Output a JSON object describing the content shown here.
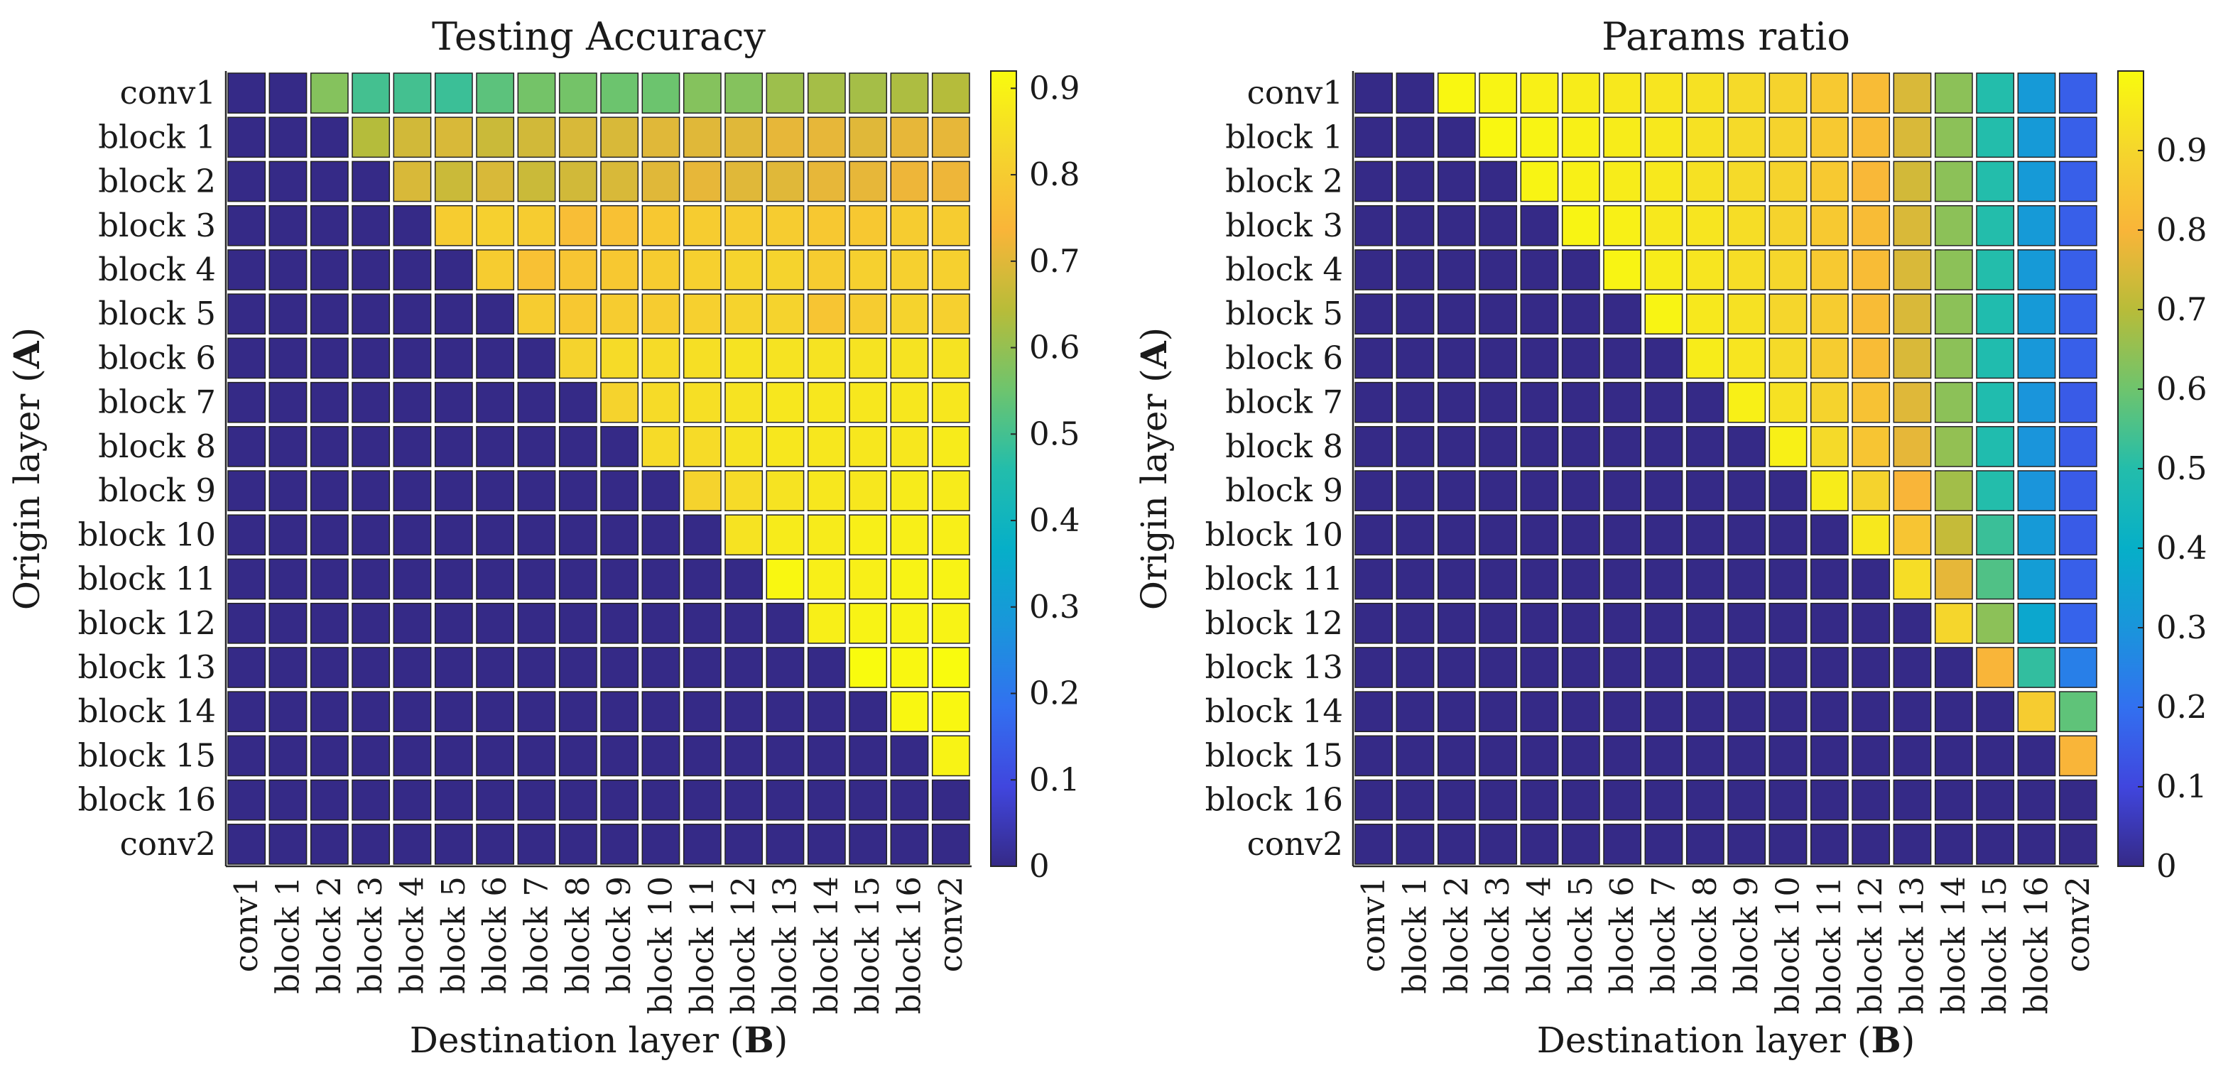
{
  "chart_data": [
    {
      "type": "heatmap",
      "title": "Testing Accuracy",
      "xlabel": "Destination layer (B)",
      "ylabel": "Origin layer (A)",
      "xlabel_parts": [
        "Destination layer (",
        "B",
        ")"
      ],
      "ylabel_parts": [
        "Origin layer (",
        "A",
        ")"
      ],
      "rows": [
        "conv1",
        "block  1",
        "block  2",
        "block  3",
        "block  4",
        "block  5",
        "block  6",
        "block  7",
        "block  8",
        "block  9",
        "block 10",
        "block 11",
        "block 12",
        "block 13",
        "block 14",
        "block 15",
        "block 16",
        "conv2"
      ],
      "columns": [
        "conv1",
        "block  1",
        "block  2",
        "block  3",
        "block  4",
        "block  5",
        "block  6",
        "block  7",
        "block  8",
        "block  9",
        "block 10",
        "block 11",
        "block 12",
        "block 13",
        "block 14",
        "block 15",
        "block 16",
        "conv2"
      ],
      "colorbar": {
        "range": [
          0,
          0.92
        ],
        "ticks": [
          0,
          0.1,
          0.2,
          0.3,
          0.4,
          0.5,
          0.6,
          0.7,
          0.8,
          0.9
        ],
        "tick_labels": [
          "0",
          "0.1",
          "0.2",
          "0.3",
          "0.4",
          "0.5",
          "0.6",
          "0.7",
          "0.8",
          "0.9"
        ]
      },
      "values": [
        [
          0,
          0,
          0.58,
          0.5,
          0.5,
          0.49,
          0.53,
          0.56,
          0.56,
          0.55,
          0.55,
          0.58,
          0.58,
          0.61,
          0.62,
          0.62,
          0.63,
          0.64
        ],
        [
          0,
          0,
          0,
          0.64,
          0.68,
          0.69,
          0.67,
          0.68,
          0.69,
          0.69,
          0.7,
          0.7,
          0.7,
          0.71,
          0.71,
          0.7,
          0.71,
          0.71
        ],
        [
          0,
          0,
          0,
          0,
          0.69,
          0.67,
          0.69,
          0.67,
          0.68,
          0.69,
          0.7,
          0.71,
          0.7,
          0.7,
          0.71,
          0.71,
          0.72,
          0.72
        ],
        [
          0,
          0,
          0,
          0,
          0,
          0.8,
          0.81,
          0.8,
          0.76,
          0.77,
          0.79,
          0.8,
          0.8,
          0.8,
          0.79,
          0.79,
          0.8,
          0.8
        ],
        [
          0,
          0,
          0,
          0,
          0,
          0,
          0.8,
          0.77,
          0.78,
          0.79,
          0.8,
          0.81,
          0.82,
          0.82,
          0.8,
          0.81,
          0.81,
          0.81
        ],
        [
          0,
          0,
          0,
          0,
          0,
          0,
          0,
          0.8,
          0.79,
          0.8,
          0.8,
          0.81,
          0.82,
          0.82,
          0.78,
          0.8,
          0.82,
          0.81
        ],
        [
          0,
          0,
          0,
          0,
          0,
          0,
          0,
          0,
          0.82,
          0.84,
          0.84,
          0.85,
          0.86,
          0.86,
          0.86,
          0.86,
          0.86,
          0.86
        ],
        [
          0,
          0,
          0,
          0,
          0,
          0,
          0,
          0,
          0,
          0.82,
          0.84,
          0.85,
          0.86,
          0.87,
          0.87,
          0.87,
          0.87,
          0.87
        ],
        [
          0,
          0,
          0,
          0,
          0,
          0,
          0,
          0,
          0,
          0,
          0.84,
          0.84,
          0.86,
          0.87,
          0.87,
          0.87,
          0.87,
          0.88
        ],
        [
          0,
          0,
          0,
          0,
          0,
          0,
          0,
          0,
          0,
          0,
          0,
          0.82,
          0.84,
          0.86,
          0.87,
          0.87,
          0.88,
          0.88
        ],
        [
          0,
          0,
          0,
          0,
          0,
          0,
          0,
          0,
          0,
          0,
          0,
          0,
          0.86,
          0.88,
          0.88,
          0.89,
          0.89,
          0.89
        ],
        [
          0,
          0,
          0,
          0,
          0,
          0,
          0,
          0,
          0,
          0,
          0,
          0,
          0,
          0.91,
          0.89,
          0.89,
          0.9,
          0.9
        ],
        [
          0,
          0,
          0,
          0,
          0,
          0,
          0,
          0,
          0,
          0,
          0,
          0,
          0,
          0,
          0.89,
          0.9,
          0.9,
          0.9
        ],
        [
          0,
          0,
          0,
          0,
          0,
          0,
          0,
          0,
          0,
          0,
          0,
          0,
          0,
          0,
          0,
          0.92,
          0.91,
          0.92
        ],
        [
          0,
          0,
          0,
          0,
          0,
          0,
          0,
          0,
          0,
          0,
          0,
          0,
          0,
          0,
          0,
          0,
          0.91,
          0.91
        ],
        [
          0,
          0,
          0,
          0,
          0,
          0,
          0,
          0,
          0,
          0,
          0,
          0,
          0,
          0,
          0,
          0,
          0,
          0.9
        ],
        [
          0,
          0,
          0,
          0,
          0,
          0,
          0,
          0,
          0,
          0,
          0,
          0,
          0,
          0,
          0,
          0,
          0,
          0
        ],
        [
          0,
          0,
          0,
          0,
          0,
          0,
          0,
          0,
          0,
          0,
          0,
          0,
          0,
          0,
          0,
          0,
          0,
          0
        ]
      ]
    },
    {
      "type": "heatmap",
      "title": "Params ratio",
      "xlabel": "Destination layer (B)",
      "ylabel": "Origin layer (A)",
      "xlabel_parts": [
        "Destination layer (",
        "B",
        ")"
      ],
      "ylabel_parts": [
        "Origin layer (",
        "A",
        ")"
      ],
      "rows": [
        "conv1",
        "block  1",
        "block  2",
        "block  3",
        "block  4",
        "block  5",
        "block  6",
        "block  7",
        "block  8",
        "block  9",
        "block 10",
        "block 11",
        "block 12",
        "block 13",
        "block 14",
        "block 15",
        "block 16",
        "conv2"
      ],
      "columns": [
        "conv1",
        "block  1",
        "block  2",
        "block  3",
        "block  4",
        "block  5",
        "block  6",
        "block  7",
        "block  8",
        "block  9",
        "block 10",
        "block 11",
        "block 12",
        "block 13",
        "block 14",
        "block 15",
        "block 16",
        "conv2"
      ],
      "colorbar": {
        "range": [
          0,
          1
        ],
        "ticks": [
          0,
          0.1,
          0.2,
          0.3,
          0.4,
          0.5,
          0.6,
          0.7,
          0.8,
          0.9
        ],
        "tick_labels": [
          "0",
          "0.1",
          "0.2",
          "0.3",
          "0.4",
          "0.5",
          "0.6",
          "0.7",
          "0.8",
          "0.9"
        ]
      },
      "values": [
        [
          0,
          0,
          0.99,
          0.98,
          0.97,
          0.96,
          0.95,
          0.94,
          0.93,
          0.91,
          0.89,
          0.86,
          0.82,
          0.75,
          0.64,
          0.5,
          0.32,
          0.16
        ],
        [
          0,
          0,
          0,
          0.99,
          0.98,
          0.97,
          0.96,
          0.95,
          0.93,
          0.91,
          0.89,
          0.86,
          0.82,
          0.75,
          0.64,
          0.5,
          0.32,
          0.16
        ],
        [
          0,
          0,
          0,
          0,
          0.98,
          0.97,
          0.96,
          0.95,
          0.93,
          0.91,
          0.89,
          0.86,
          0.81,
          0.74,
          0.64,
          0.5,
          0.32,
          0.16
        ],
        [
          0,
          0,
          0,
          0,
          0,
          0.98,
          0.97,
          0.95,
          0.94,
          0.92,
          0.89,
          0.86,
          0.82,
          0.75,
          0.64,
          0.5,
          0.32,
          0.16
        ],
        [
          0,
          0,
          0,
          0,
          0,
          0,
          0.98,
          0.96,
          0.94,
          0.92,
          0.9,
          0.86,
          0.82,
          0.75,
          0.64,
          0.5,
          0.32,
          0.16
        ],
        [
          0,
          0,
          0,
          0,
          0,
          0,
          0,
          0.98,
          0.95,
          0.93,
          0.9,
          0.87,
          0.82,
          0.75,
          0.64,
          0.49,
          0.32,
          0.16
        ],
        [
          0,
          0,
          0,
          0,
          0,
          0,
          0,
          0,
          0.96,
          0.94,
          0.91,
          0.87,
          0.82,
          0.75,
          0.64,
          0.49,
          0.31,
          0.16
        ],
        [
          0,
          0,
          0,
          0,
          0,
          0,
          0,
          0,
          0,
          0.97,
          0.93,
          0.89,
          0.84,
          0.76,
          0.64,
          0.49,
          0.3,
          0.15
        ],
        [
          0,
          0,
          0,
          0,
          0,
          0,
          0,
          0,
          0,
          0,
          0.97,
          0.91,
          0.85,
          0.77,
          0.65,
          0.49,
          0.3,
          0.15
        ],
        [
          0,
          0,
          0,
          0,
          0,
          0,
          0,
          0,
          0,
          0,
          0,
          0.96,
          0.89,
          0.8,
          0.67,
          0.5,
          0.3,
          0.15
        ],
        [
          0,
          0,
          0,
          0,
          0,
          0,
          0,
          0,
          0,
          0,
          0,
          0,
          0.95,
          0.85,
          0.72,
          0.53,
          0.32,
          0.15
        ],
        [
          0,
          0,
          0,
          0,
          0,
          0,
          0,
          0,
          0,
          0,
          0,
          0,
          0,
          0.92,
          0.77,
          0.56,
          0.33,
          0.16
        ],
        [
          0,
          0,
          0,
          0,
          0,
          0,
          0,
          0,
          0,
          0,
          0,
          0,
          0,
          0,
          0.9,
          0.64,
          0.37,
          0.17
        ],
        [
          0,
          0,
          0,
          0,
          0,
          0,
          0,
          0,
          0,
          0,
          0,
          0,
          0,
          0,
          0,
          0.8,
          0.52,
          0.24
        ],
        [
          0,
          0,
          0,
          0,
          0,
          0,
          0,
          0,
          0,
          0,
          0,
          0,
          0,
          0,
          0,
          0,
          0.87,
          0.58
        ],
        [
          0,
          0,
          0,
          0,
          0,
          0,
          0,
          0,
          0,
          0,
          0,
          0,
          0,
          0,
          0,
          0,
          0,
          0.8
        ],
        [
          0,
          0,
          0,
          0,
          0,
          0,
          0,
          0,
          0,
          0,
          0,
          0,
          0,
          0,
          0,
          0,
          0,
          0
        ],
        [
          0,
          0,
          0,
          0,
          0,
          0,
          0,
          0,
          0,
          0,
          0,
          0,
          0,
          0,
          0,
          0,
          0,
          0
        ]
      ]
    }
  ]
}
